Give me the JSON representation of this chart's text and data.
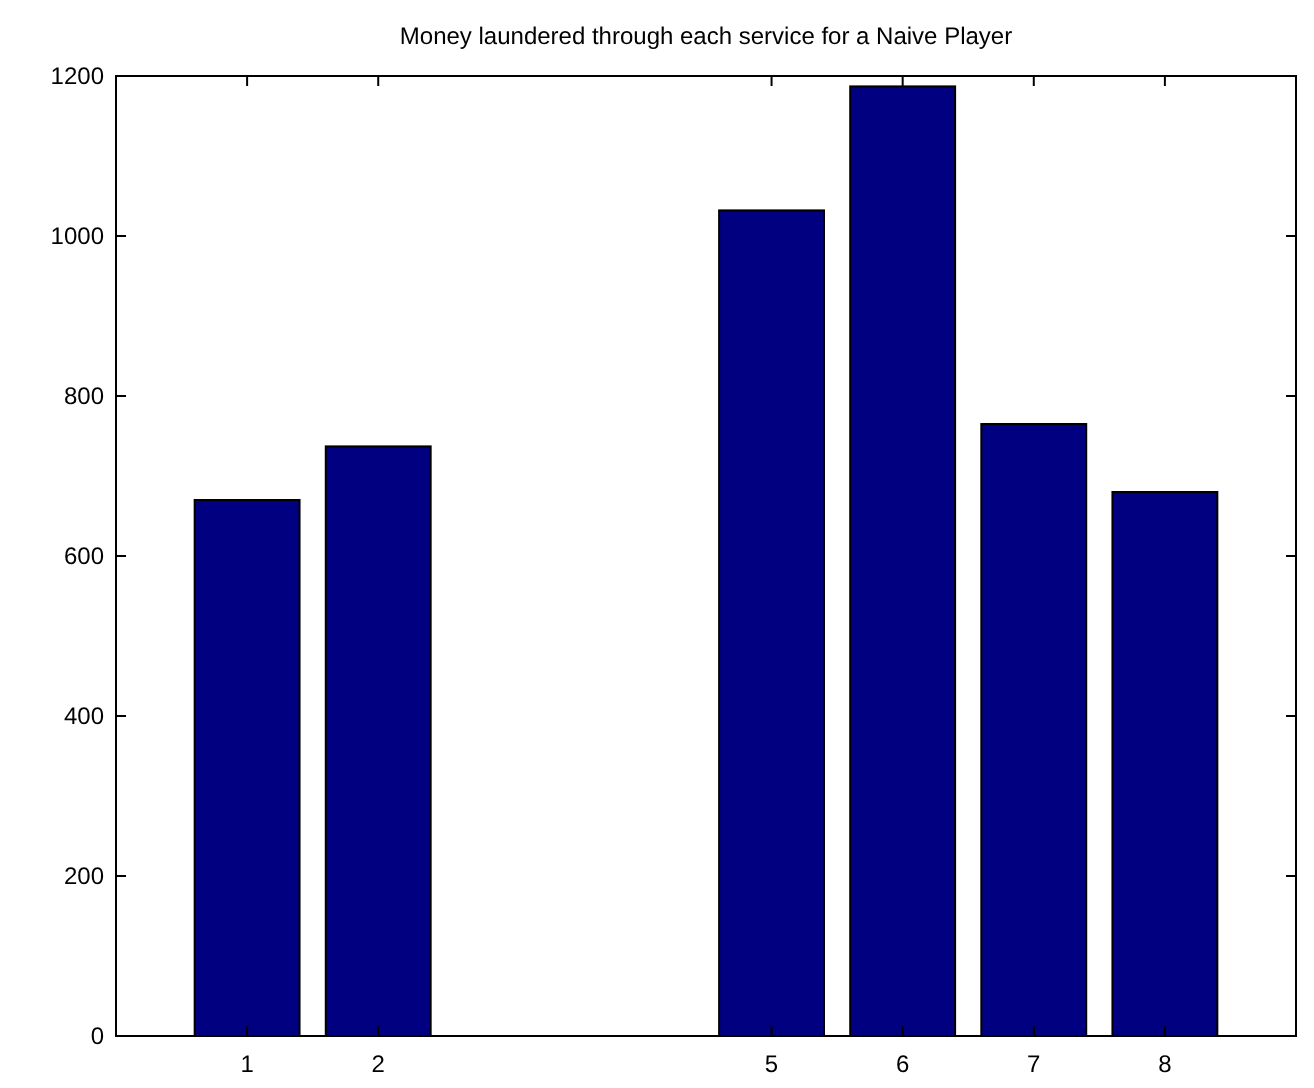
{
  "chart_data": {
    "type": "bar",
    "title": "Money laundered through each service for a Naive Player",
    "x": [
      1,
      2,
      5,
      6,
      7,
      8
    ],
    "values": [
      670,
      737,
      1032,
      1187,
      765,
      680
    ],
    "color": "#000080",
    "xlim": [
      0,
      9
    ],
    "xticks": [
      1,
      2,
      5,
      6,
      7,
      8
    ],
    "ylim": [
      0,
      1200
    ],
    "yticks": [
      0,
      200,
      400,
      600,
      800,
      1000,
      1200
    ],
    "grid": false
  }
}
